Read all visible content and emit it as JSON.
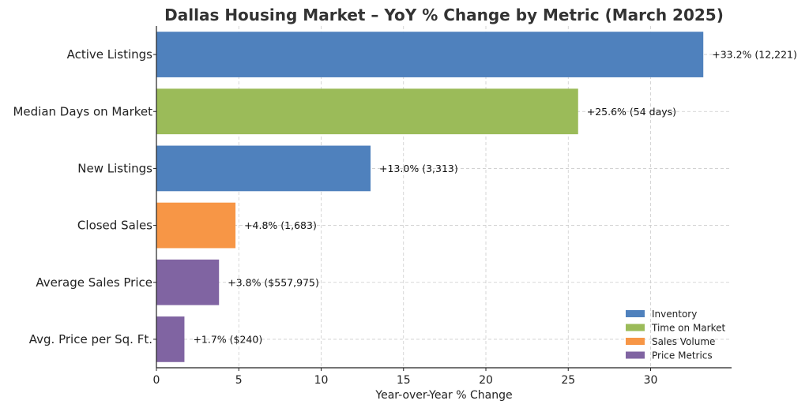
{
  "chart_data": {
    "type": "bar",
    "orientation": "horizontal",
    "title": "Dallas Housing Market – YoY % Change by Metric (March 2025)",
    "xlabel": "Year-over-Year % Change",
    "ylabel": "",
    "xlim": [
      0,
      35
    ],
    "xticks": [
      "0",
      "5",
      "10",
      "15",
      "20",
      "25",
      "30"
    ],
    "grid": true,
    "legend_position": "bottom-right",
    "legend": [
      {
        "name": "Inventory",
        "color": "#4f81bd"
      },
      {
        "name": "Time on Market",
        "color": "#9bbb59"
      },
      {
        "name": "Sales Volume",
        "color": "#f79646"
      },
      {
        "name": "Price Metrics",
        "color": "#8064a2"
      }
    ],
    "bars": [
      {
        "category": "Active Listings",
        "value": 33.2,
        "label": "+33.2% (12,221)",
        "group": "Inventory"
      },
      {
        "category": "Median Days on Market",
        "value": 25.6,
        "label": "+25.6% (54 days)",
        "group": "Time on Market"
      },
      {
        "category": "New Listings",
        "value": 13.0,
        "label": "+13.0% (3,313)",
        "group": "Inventory"
      },
      {
        "category": "Closed Sales",
        "value": 4.8,
        "label": "+4.8% (1,683)",
        "group": "Sales Volume"
      },
      {
        "category": "Average Sales Price",
        "value": 3.8,
        "label": "+3.8% ($557,975)",
        "group": "Price Metrics"
      },
      {
        "category": "Avg. Price per Sq. Ft.",
        "value": 1.7,
        "label": "+1.7% ($240)",
        "group": "Price Metrics"
      }
    ]
  }
}
